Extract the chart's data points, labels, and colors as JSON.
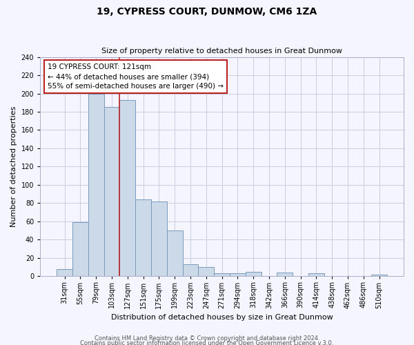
{
  "title": "19, CYPRESS COURT, DUNMOW, CM6 1ZA",
  "subtitle": "Size of property relative to detached houses in Great Dunmow",
  "xlabel": "Distribution of detached houses by size in Great Dunmow",
  "ylabel": "Number of detached properties",
  "bin_labels": [
    "31sqm",
    "55sqm",
    "79sqm",
    "103sqm",
    "127sqm",
    "151sqm",
    "175sqm",
    "199sqm",
    "223sqm",
    "247sqm",
    "271sqm",
    "294sqm",
    "318sqm",
    "342sqm",
    "366sqm",
    "390sqm",
    "414sqm",
    "438sqm",
    "462sqm",
    "486sqm",
    "510sqm"
  ],
  "bar_values": [
    8,
    59,
    200,
    185,
    193,
    84,
    82,
    50,
    13,
    10,
    3,
    3,
    5,
    0,
    4,
    0,
    3,
    0,
    0,
    0,
    2
  ],
  "bar_color": "#ccd9e8",
  "bar_edge_color": "#7799bb",
  "annotation_text": "19 CYPRESS COURT: 121sqm\n← 44% of detached houses are smaller (394)\n55% of semi-detached houses are larger (490) →",
  "annotation_box_color": "white",
  "annotation_box_edge": "#bb2222",
  "line_color": "#bb2222",
  "ylim": [
    0,
    240
  ],
  "yticks": [
    0,
    20,
    40,
    60,
    80,
    100,
    120,
    140,
    160,
    180,
    200,
    220,
    240
  ],
  "footer1": "Contains HM Land Registry data © Crown copyright and database right 2024.",
  "footer2": "Contains public sector information licensed under the Open Government Licence v.3.0.",
  "bg_color": "#f5f5ff",
  "grid_color": "#c8cce0",
  "red_line_bin_index": 4,
  "title_fontsize": 10,
  "subtitle_fontsize": 8,
  "ylabel_fontsize": 8,
  "xlabel_fontsize": 8,
  "tick_fontsize": 7,
  "annot_fontsize": 7.5,
  "footer_fontsize": 6
}
